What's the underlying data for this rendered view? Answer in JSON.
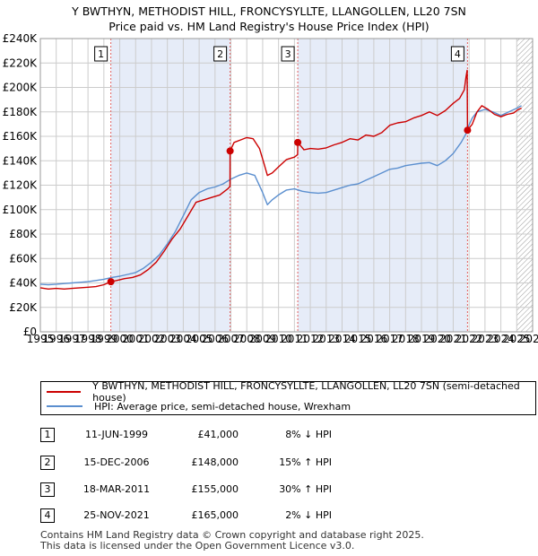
{
  "title": {
    "line1": "Y BWTHYN, METHODIST HILL, FRONCYSYLLTE, LLANGOLLEN, LL20 7SN",
    "line2": "Price paid vs. HM Land Registry's House Price Index (HPI)"
  },
  "legend": {
    "property": "Y BWTHYN, METHODIST HILL, FRONCYSYLLTE, LLANGOLLEN, LL20 7SN (semi-detached house)",
    "hpi": "HPI: Average price, semi-detached house, Wrexham"
  },
  "transactions": [
    {
      "num": "1",
      "date": "11-JUN-1999",
      "price": "£41,000",
      "hpi": "8% ↓ HPI"
    },
    {
      "num": "2",
      "date": "15-DEC-2006",
      "price": "£148,000",
      "hpi": "15% ↑ HPI"
    },
    {
      "num": "3",
      "date": "18-MAR-2011",
      "price": "£155,000",
      "hpi": "30% ↑ HPI"
    },
    {
      "num": "4",
      "date": "25-NOV-2021",
      "price": "£165,000",
      "hpi": "2% ↓ HPI"
    }
  ],
  "footer": {
    "line1": "Contains HM Land Registry data © Crown copyright and database right 2025.",
    "line2": "This data is licensed under the Open Government Licence v3.0."
  },
  "colors": {
    "property": "#cc0000",
    "hpi": "#5b8fcf",
    "band": "#e6ecf8",
    "vline": "#e06060",
    "grid": "#cccccc"
  },
  "chart_data": {
    "type": "line",
    "title": "Price paid vs. HM Land Registry's House Price Index (HPI)",
    "xlim": [
      1995,
      2026
    ],
    "ylim": [
      0,
      240000
    ],
    "yticks": [
      {
        "value": 0,
        "label": "£0"
      },
      {
        "value": 20000,
        "label": "£20K"
      },
      {
        "value": 40000,
        "label": "£40K"
      },
      {
        "value": 60000,
        "label": "£60K"
      },
      {
        "value": 80000,
        "label": "£80K"
      },
      {
        "value": 100000,
        "label": "£100K"
      },
      {
        "value": 120000,
        "label": "£120K"
      },
      {
        "value": 140000,
        "label": "£140K"
      },
      {
        "value": 160000,
        "label": "£160K"
      },
      {
        "value": 180000,
        "label": "£180K"
      },
      {
        "value": 200000,
        "label": "£200K"
      },
      {
        "value": 220000,
        "label": "£220K"
      },
      {
        "value": 240000,
        "label": "£240K"
      }
    ],
    "xticks": [
      "1995",
      "1996",
      "1997",
      "1998",
      "1999",
      "2000",
      "2001",
      "2002",
      "2003",
      "2004",
      "2005",
      "2006",
      "2007",
      "2008",
      "2009",
      "2010",
      "2011",
      "2012",
      "2013",
      "2014",
      "2015",
      "2016",
      "2017",
      "2018",
      "2019",
      "2020",
      "2021",
      "2022",
      "2023",
      "2024",
      "2025",
      "2026"
    ],
    "shaded_bands": [
      [
        1999.44,
        2006.95
      ],
      [
        2011.21,
        2021.9
      ]
    ],
    "hatch_from": 2025.0,
    "sales": [
      {
        "label": "1",
        "x": 1999.44,
        "y": 41000
      },
      {
        "label": "2",
        "x": 2006.95,
        "y": 148000
      },
      {
        "label": "3",
        "x": 2011.21,
        "y": 155000
      },
      {
        "label": "4",
        "x": 2021.9,
        "y": 165000
      }
    ],
    "series": [
      {
        "name": "Y BWTHYN, METHODIST HILL, FRONCYSYLLTE, LLANGOLLEN, LL20 7SN (semi-detached house)",
        "x": [
          1995,
          1995.5,
          1996,
          1996.5,
          1997,
          1997.5,
          1998,
          1998.5,
          1999,
          1999.44,
          1999.8,
          2000.3,
          2000.8,
          2001.3,
          2001.8,
          2002.3,
          2002.8,
          2003.3,
          2003.8,
          2004.3,
          2004.8,
          2005.3,
          2005.8,
          2006.3,
          2006.8,
          2006.94,
          2006.95,
          2007.2,
          2007.6,
          2008.0,
          2008.4,
          2008.8,
          2009.1,
          2009.3,
          2009.6,
          2010.0,
          2010.5,
          2011.0,
          2011.2,
          2011.21,
          2011.6,
          2012.0,
          2012.5,
          2013.0,
          2013.5,
          2014.0,
          2014.5,
          2015.0,
          2015.5,
          2016.0,
          2016.5,
          2017.0,
          2017.5,
          2018.0,
          2018.5,
          2019.0,
          2019.5,
          2020.0,
          2020.5,
          2021.0,
          2021.4,
          2021.7,
          2021.8,
          2021.88,
          2021.9,
          2022.2,
          2022.5,
          2022.8,
          2023.2,
          2023.6,
          2024.0,
          2024.4,
          2024.8,
          2025.1,
          2025.3
        ],
        "y": [
          36000,
          35000,
          35500,
          35000,
          35500,
          36000,
          36500,
          37000,
          38500,
          41000,
          42000,
          43500,
          44500,
          46500,
          51000,
          57000,
          66000,
          76000,
          84000,
          95000,
          106000,
          108000,
          110000,
          112000,
          117000,
          119000,
          148000,
          155000,
          157000,
          159000,
          158000,
          150000,
          137000,
          128000,
          130000,
          135000,
          141000,
          143000,
          145000,
          155000,
          149000,
          150000,
          149500,
          150500,
          153000,
          155000,
          158000,
          157000,
          161000,
          160000,
          163000,
          169000,
          171000,
          172000,
          175000,
          177000,
          180000,
          177000,
          181000,
          187000,
          191000,
          198000,
          208000,
          214000,
          165000,
          170000,
          180000,
          185000,
          182000,
          178000,
          176000,
          178000,
          179000,
          182000,
          183000
        ]
      },
      {
        "name": "HPI: Average price, semi-detached house, Wrexham",
        "x": [
          1995,
          1995.5,
          1996,
          1996.5,
          1997,
          1997.5,
          1998,
          1998.5,
          1999,
          1999.5,
          2000,
          2000.5,
          2001,
          2001.5,
          2002,
          2002.5,
          2003,
          2003.5,
          2004,
          2004.5,
          2005,
          2005.5,
          2006,
          2006.5,
          2007,
          2007.5,
          2008,
          2008.5,
          2009,
          2009.3,
          2009.6,
          2010,
          2010.5,
          2011,
          2011.5,
          2012,
          2012.5,
          2013,
          2013.5,
          2014,
          2014.5,
          2015,
          2015.5,
          2016,
          2016.5,
          2017,
          2017.5,
          2018,
          2018.5,
          2019,
          2019.5,
          2020,
          2020.5,
          2021,
          2021.5,
          2021.8,
          2021.95,
          2022.2,
          2022.5,
          2023,
          2023.5,
          2024,
          2024.5,
          2025,
          2025.3
        ],
        "y": [
          39000,
          38500,
          39000,
          39500,
          40000,
          40500,
          41000,
          42000,
          43000,
          44500,
          45500,
          47000,
          48500,
          52000,
          57000,
          63000,
          72000,
          82000,
          95000,
          108000,
          114000,
          117000,
          118500,
          121000,
          125000,
          128000,
          130000,
          128000,
          114000,
          104000,
          108000,
          112000,
          116000,
          117000,
          115000,
          114000,
          113500,
          114000,
          116000,
          118000,
          120000,
          121000,
          124000,
          127000,
          130000,
          133000,
          134000,
          136000,
          137000,
          138000,
          138500,
          136000,
          140000,
          146000,
          155000,
          162000,
          168000,
          175000,
          180000,
          182000,
          180000,
          177000,
          180000,
          183000,
          185000
        ]
      }
    ]
  }
}
